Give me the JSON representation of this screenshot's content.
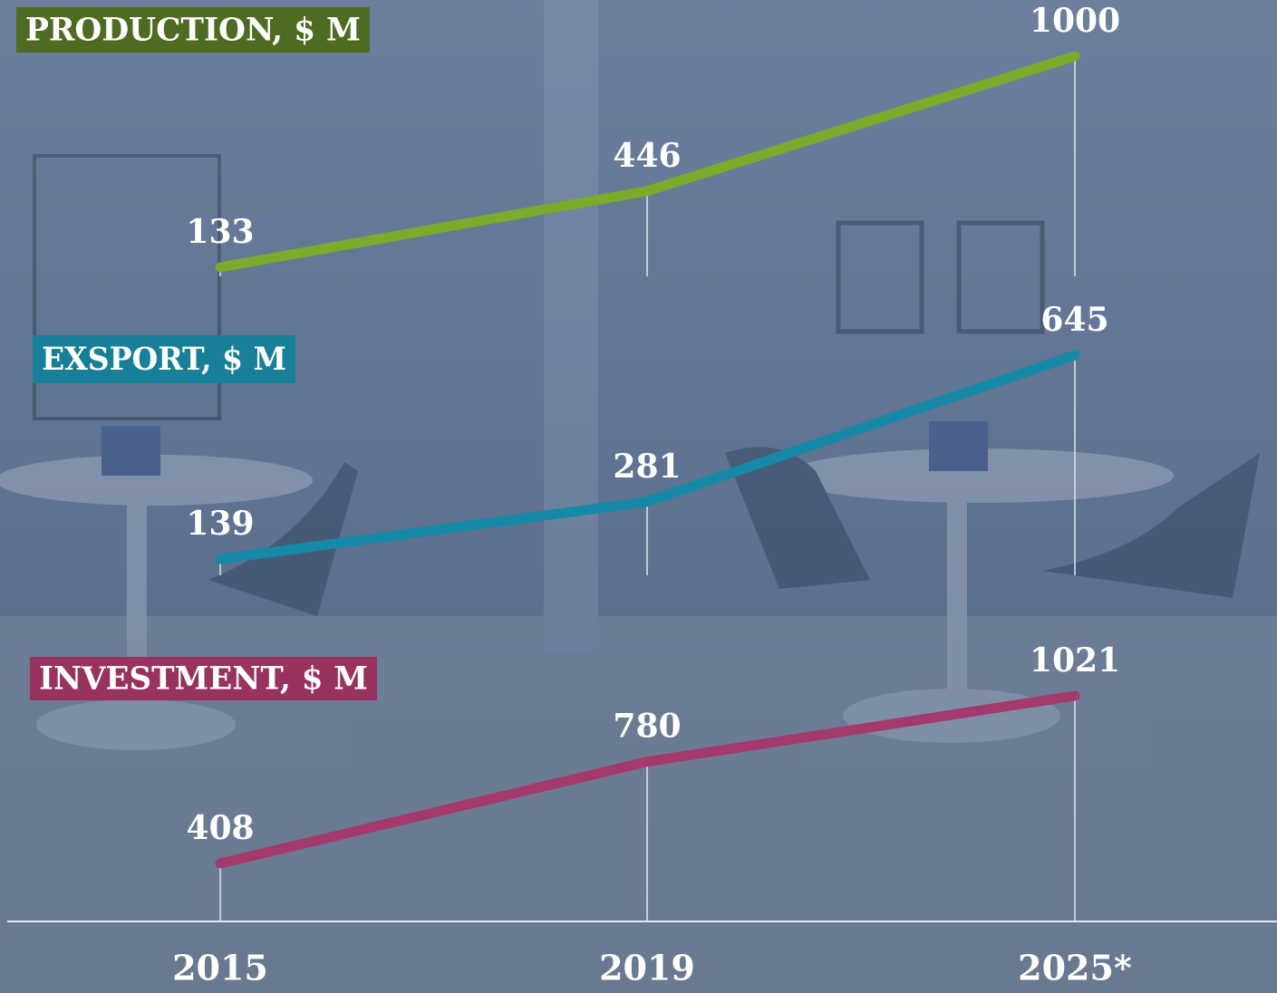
{
  "chart_data": {
    "type": "line",
    "categories": [
      "2015",
      "2019",
      "2025*"
    ],
    "series": [
      {
        "name": "PRODUCTION, $ M",
        "color": "#7aab2b",
        "values": [
          133,
          446,
          1000
        ]
      },
      {
        "name": "EXSPORT, $ M",
        "color": "#1689a6",
        "values": [
          139,
          281,
          645
        ]
      },
      {
        "name": "INVESTMENT, $ M",
        "color": "#a43a6c",
        "values": [
          408,
          780,
          1021
        ]
      }
    ]
  }
}
